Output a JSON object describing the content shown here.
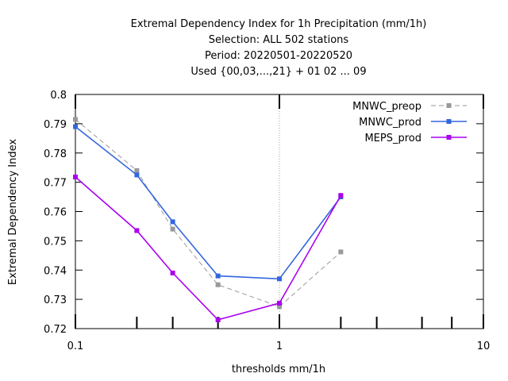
{
  "chart_data": {
    "type": "line",
    "title_lines": [
      "Extremal Dependency Index  for 1h Precipitation (mm/1h)",
      "Selection: ALL    502 stations",
      "Period: 20220501-20220520",
      "Used {00,03,...,21} + 01 02 ... 09"
    ],
    "xlabel": "thresholds mm/1h",
    "ylabel": "Extremal Dependency Index",
    "x_scale": "log",
    "xlim": [
      0.1,
      10
    ],
    "ylim": [
      0.72,
      0.8
    ],
    "x_ticks": [
      {
        "value": 0.1,
        "label": "0.1"
      },
      {
        "value": 1,
        "label": "1"
      },
      {
        "value": 10,
        "label": "10"
      }
    ],
    "x_minor_ticks": [
      0.2,
      0.3,
      0.5,
      2,
      3,
      5,
      7
    ],
    "y_ticks": [
      {
        "value": 0.72,
        "label": "0.72"
      },
      {
        "value": 0.73,
        "label": "0.73"
      },
      {
        "value": 0.74,
        "label": "0.74"
      },
      {
        "value": 0.75,
        "label": "0.75"
      },
      {
        "value": 0.76,
        "label": "0.76"
      },
      {
        "value": 0.77,
        "label": "0.77"
      },
      {
        "value": 0.78,
        "label": "0.78"
      },
      {
        "value": 0.79,
        "label": "0.79"
      },
      {
        "value": 0.8,
        "label": "0.8"
      }
    ],
    "grid": "vertical line at x=1 only",
    "legend_position": "top-right",
    "series": [
      {
        "name": "MNWC_preop",
        "color": "#999999",
        "dashed": true,
        "x": [
          0.1,
          0.2,
          0.3,
          0.5,
          1,
          2
        ],
        "y": [
          0.7915,
          0.774,
          0.754,
          0.735,
          0.7275,
          0.7462
        ]
      },
      {
        "name": "MNWC_prod",
        "color": "#3366dd",
        "dashed": false,
        "x": [
          0.1,
          0.2,
          0.3,
          0.5,
          1,
          2
        ],
        "y": [
          0.789,
          0.7725,
          0.7565,
          0.738,
          0.737,
          0.765
        ]
      },
      {
        "name": "MEPS_prod",
        "color": "#aa00ee",
        "dashed": false,
        "x": [
          0.1,
          0.2,
          0.3,
          0.5,
          1,
          2
        ],
        "y": [
          0.7718,
          0.7535,
          0.739,
          0.723,
          0.7287,
          0.7655
        ]
      }
    ]
  }
}
